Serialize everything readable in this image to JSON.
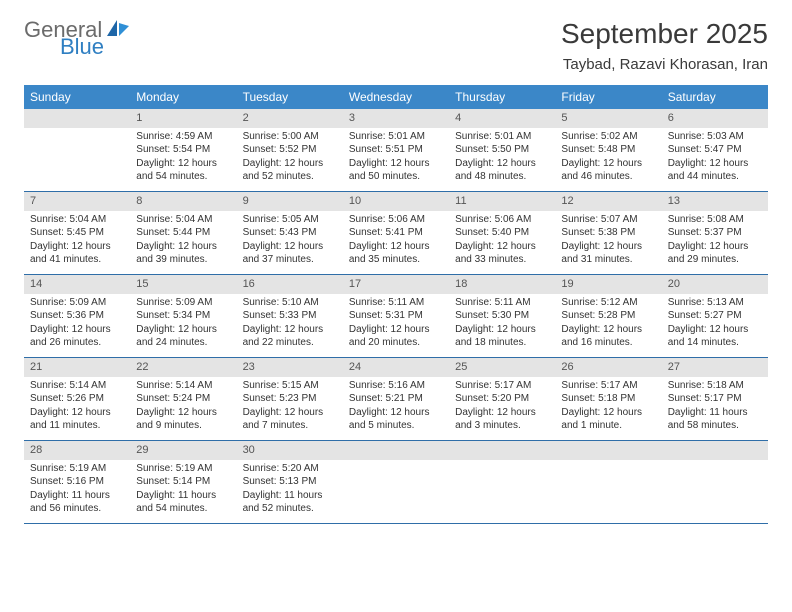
{
  "brand": {
    "word1": "General",
    "word2": "Blue"
  },
  "title": "September 2025",
  "location": "Taybad, Razavi Khorasan, Iran",
  "header_bg": "#3b87c8",
  "daynum_bg": "#e4e4e4",
  "week_border": "#2f6ea8",
  "day_names": [
    "Sunday",
    "Monday",
    "Tuesday",
    "Wednesday",
    "Thursday",
    "Friday",
    "Saturday"
  ],
  "start_offset": 1,
  "days": [
    {
      "n": 1,
      "sr": "4:59 AM",
      "ss": "5:54 PM",
      "dl": "12 hours and 54 minutes."
    },
    {
      "n": 2,
      "sr": "5:00 AM",
      "ss": "5:52 PM",
      "dl": "12 hours and 52 minutes."
    },
    {
      "n": 3,
      "sr": "5:01 AM",
      "ss": "5:51 PM",
      "dl": "12 hours and 50 minutes."
    },
    {
      "n": 4,
      "sr": "5:01 AM",
      "ss": "5:50 PM",
      "dl": "12 hours and 48 minutes."
    },
    {
      "n": 5,
      "sr": "5:02 AM",
      "ss": "5:48 PM",
      "dl": "12 hours and 46 minutes."
    },
    {
      "n": 6,
      "sr": "5:03 AM",
      "ss": "5:47 PM",
      "dl": "12 hours and 44 minutes."
    },
    {
      "n": 7,
      "sr": "5:04 AM",
      "ss": "5:45 PM",
      "dl": "12 hours and 41 minutes."
    },
    {
      "n": 8,
      "sr": "5:04 AM",
      "ss": "5:44 PM",
      "dl": "12 hours and 39 minutes."
    },
    {
      "n": 9,
      "sr": "5:05 AM",
      "ss": "5:43 PM",
      "dl": "12 hours and 37 minutes."
    },
    {
      "n": 10,
      "sr": "5:06 AM",
      "ss": "5:41 PM",
      "dl": "12 hours and 35 minutes."
    },
    {
      "n": 11,
      "sr": "5:06 AM",
      "ss": "5:40 PM",
      "dl": "12 hours and 33 minutes."
    },
    {
      "n": 12,
      "sr": "5:07 AM",
      "ss": "5:38 PM",
      "dl": "12 hours and 31 minutes."
    },
    {
      "n": 13,
      "sr": "5:08 AM",
      "ss": "5:37 PM",
      "dl": "12 hours and 29 minutes."
    },
    {
      "n": 14,
      "sr": "5:09 AM",
      "ss": "5:36 PM",
      "dl": "12 hours and 26 minutes."
    },
    {
      "n": 15,
      "sr": "5:09 AM",
      "ss": "5:34 PM",
      "dl": "12 hours and 24 minutes."
    },
    {
      "n": 16,
      "sr": "5:10 AM",
      "ss": "5:33 PM",
      "dl": "12 hours and 22 minutes."
    },
    {
      "n": 17,
      "sr": "5:11 AM",
      "ss": "5:31 PM",
      "dl": "12 hours and 20 minutes."
    },
    {
      "n": 18,
      "sr": "5:11 AM",
      "ss": "5:30 PM",
      "dl": "12 hours and 18 minutes."
    },
    {
      "n": 19,
      "sr": "5:12 AM",
      "ss": "5:28 PM",
      "dl": "12 hours and 16 minutes."
    },
    {
      "n": 20,
      "sr": "5:13 AM",
      "ss": "5:27 PM",
      "dl": "12 hours and 14 minutes."
    },
    {
      "n": 21,
      "sr": "5:14 AM",
      "ss": "5:26 PM",
      "dl": "12 hours and 11 minutes."
    },
    {
      "n": 22,
      "sr": "5:14 AM",
      "ss": "5:24 PM",
      "dl": "12 hours and 9 minutes."
    },
    {
      "n": 23,
      "sr": "5:15 AM",
      "ss": "5:23 PM",
      "dl": "12 hours and 7 minutes."
    },
    {
      "n": 24,
      "sr": "5:16 AM",
      "ss": "5:21 PM",
      "dl": "12 hours and 5 minutes."
    },
    {
      "n": 25,
      "sr": "5:17 AM",
      "ss": "5:20 PM",
      "dl": "12 hours and 3 minutes."
    },
    {
      "n": 26,
      "sr": "5:17 AM",
      "ss": "5:18 PM",
      "dl": "12 hours and 1 minute."
    },
    {
      "n": 27,
      "sr": "5:18 AM",
      "ss": "5:17 PM",
      "dl": "11 hours and 58 minutes."
    },
    {
      "n": 28,
      "sr": "5:19 AM",
      "ss": "5:16 PM",
      "dl": "11 hours and 56 minutes."
    },
    {
      "n": 29,
      "sr": "5:19 AM",
      "ss": "5:14 PM",
      "dl": "11 hours and 54 minutes."
    },
    {
      "n": 30,
      "sr": "5:20 AM",
      "ss": "5:13 PM",
      "dl": "11 hours and 52 minutes."
    }
  ],
  "labels": {
    "sunrise": "Sunrise:",
    "sunset": "Sunset:",
    "daylight": "Daylight:"
  }
}
